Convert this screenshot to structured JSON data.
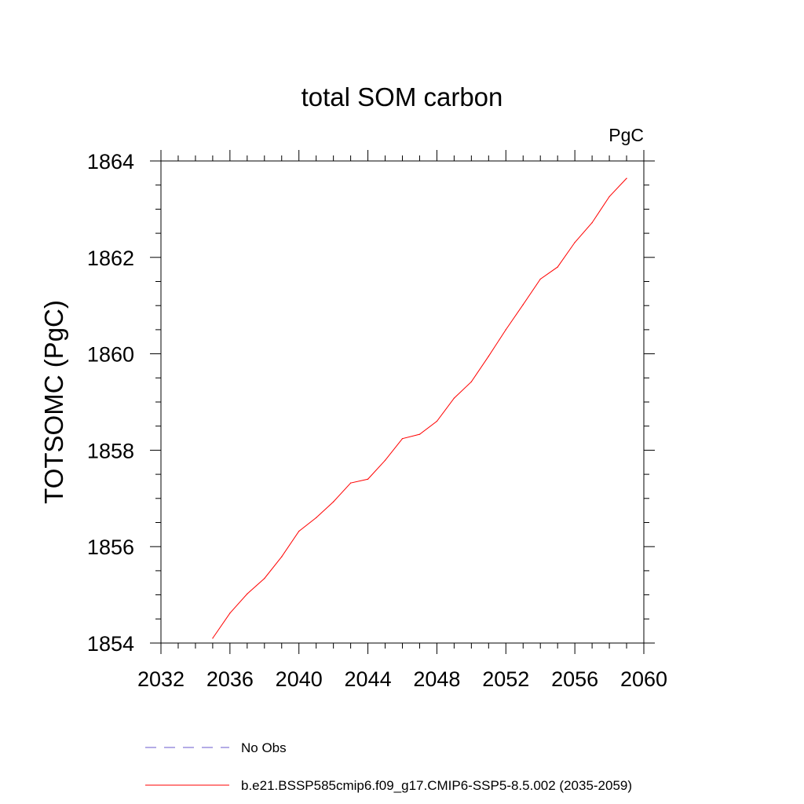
{
  "chart_data": {
    "type": "line",
    "title": "total SOM carbon",
    "unit_label": "PgC",
    "ylabel": "TOTSOMC  (PgC)",
    "xlabel": "",
    "xlim": [
      2032,
      2060
    ],
    "ylim": [
      1854,
      1864
    ],
    "x_ticks": [
      "2032",
      "2036",
      "2040",
      "2044",
      "2048",
      "2052",
      "2056",
      "2060"
    ],
    "y_ticks": [
      "1854",
      "1856",
      "1858",
      "1860",
      "1862",
      "1864"
    ],
    "grid": false,
    "legend_position": "bottom",
    "series": [
      {
        "name": "No Obs",
        "color": "#6a5acd",
        "style": "dashed",
        "x": [],
        "y": []
      },
      {
        "name": "b.e21.BSSP585cmip6.f09_g17.CMIP6-SSP5-8.5.002 (2035-2059)",
        "color": "#ff0000",
        "style": "solid",
        "x": [
          2035,
          2036,
          2037,
          2038,
          2039,
          2040,
          2041,
          2042,
          2043,
          2044,
          2045,
          2046,
          2047,
          2048,
          2049,
          2050,
          2051,
          2052,
          2053,
          2054,
          2055,
          2056,
          2057,
          2058,
          2059
        ],
        "y": [
          1854.1,
          1854.62,
          1855.02,
          1855.34,
          1855.79,
          1856.32,
          1856.6,
          1856.93,
          1857.32,
          1857.4,
          1857.79,
          1858.24,
          1858.33,
          1858.6,
          1859.08,
          1859.42,
          1859.95,
          1860.5,
          1861.02,
          1861.55,
          1861.8,
          1862.31,
          1862.72,
          1863.26,
          1863.64
        ]
      }
    ]
  }
}
